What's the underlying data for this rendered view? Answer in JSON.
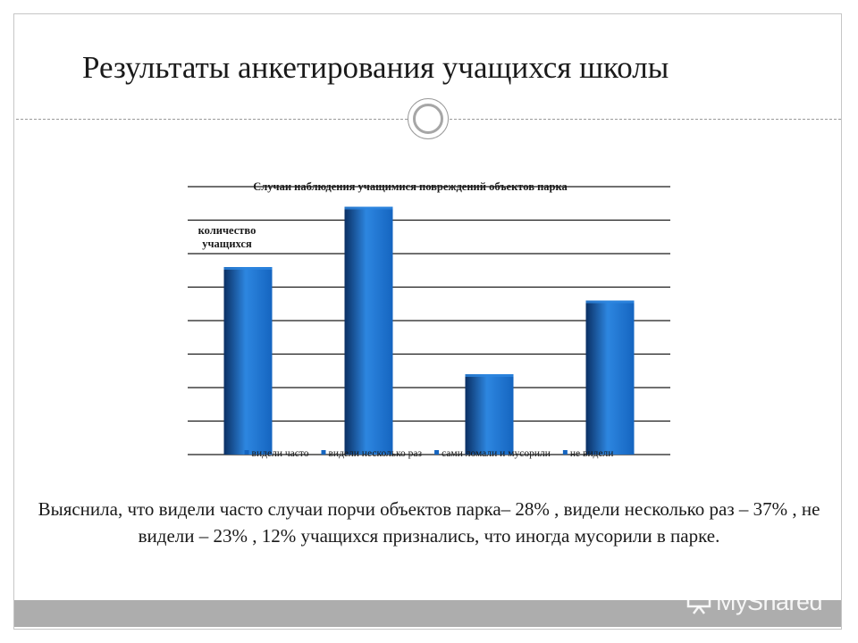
{
  "slide": {
    "title": "Результаты анкетирования учащихся школы",
    "conclusion": "Выяснила, что  видели часто случаи порчи объектов парка– 28% , видели несколько раз – 37% , не видели – 23% , 12% учащихся признались, что иногда мусорили в парке.",
    "watermark": "MyShared"
  },
  "chart_data": {
    "type": "bar",
    "title": "Случаи наблюдения учащимися повреждений объектов парка",
    "ylabel": "количество учащихся",
    "xlabel": "",
    "categories": [
      "видели часто",
      "видели несколько раз",
      "сами ломали и мусорили",
      "не видели"
    ],
    "values": [
      28,
      37,
      12,
      23
    ],
    "ylim": [
      0,
      40
    ],
    "grid": true,
    "legend": "bottom",
    "colors": {
      "bar": "#1565c0",
      "bar_dark": "#0a2f63",
      "bar_light": "#2d86e0",
      "grid": "#1a1a1a"
    }
  }
}
